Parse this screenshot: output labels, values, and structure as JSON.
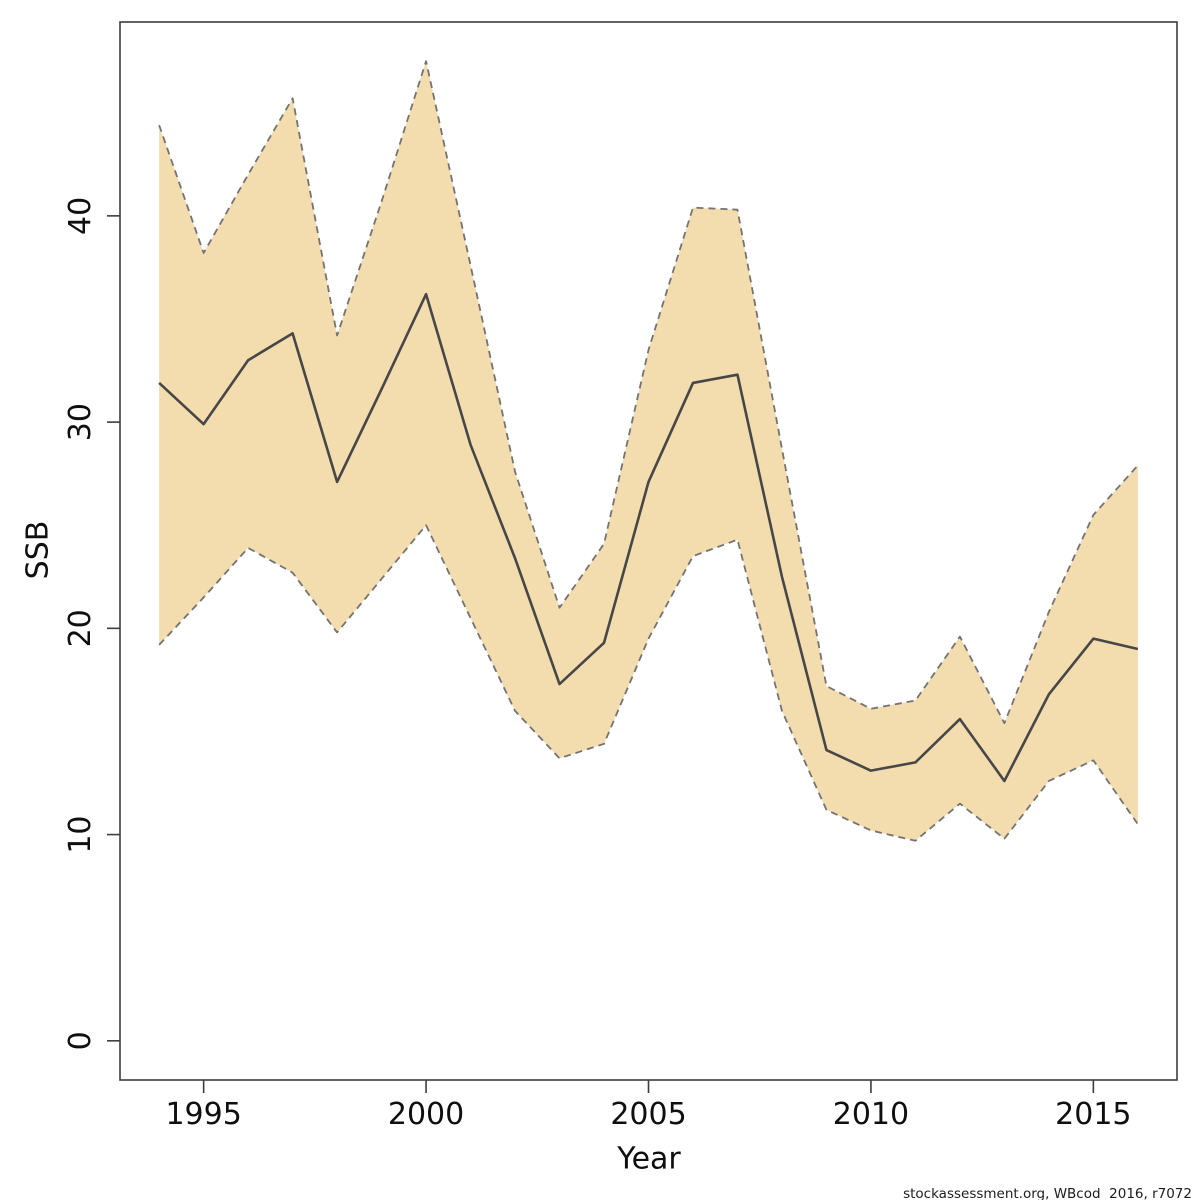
{
  "page": {
    "background": "#ffffff"
  },
  "chart_data": {
    "type": "line",
    "title": "",
    "xlabel": "Year",
    "ylabel": "SSB",
    "caption": "stockassessment.org, WBcod  2016, r7072",
    "x": [
      1994,
      1995,
      1996,
      1997,
      1998,
      1999,
      2000,
      2001,
      2002,
      2003,
      2004,
      2005,
      2006,
      2007,
      2008,
      2009,
      2010,
      2011,
      2012,
      2013,
      2014,
      2015,
      2016
    ],
    "series": [
      {
        "name": "median",
        "style": "solid",
        "color": "#474747",
        "values": [
          31.9,
          29.9,
          33.0,
          34.3,
          27.1,
          31.6,
          36.2,
          28.9,
          23.4,
          17.3,
          19.3,
          27.1,
          31.9,
          32.3,
          22.5,
          14.1,
          13.1,
          13.5,
          15.6,
          12.6,
          16.8,
          19.5,
          19.0
        ]
      },
      {
        "name": "ci-upper",
        "style": "dashed",
        "color": "#737373",
        "values": [
          44.4,
          38.2,
          42.0,
          45.7,
          34.2,
          40.7,
          47.5,
          37.6,
          27.6,
          21.0,
          24.1,
          33.5,
          40.4,
          40.3,
          28.7,
          17.2,
          16.1,
          16.5,
          19.6,
          15.4,
          20.8,
          25.5,
          27.9
        ]
      },
      {
        "name": "ci-lower",
        "style": "dashed",
        "color": "#737373",
        "values": [
          19.2,
          21.5,
          23.9,
          22.7,
          19.8,
          22.4,
          25.0,
          20.5,
          16.0,
          13.7,
          14.4,
          19.5,
          23.5,
          24.3,
          16.0,
          11.2,
          10.2,
          9.7,
          11.5,
          9.8,
          12.6,
          13.6,
          10.5
        ]
      }
    ],
    "band": {
      "fill": "#f3dcae",
      "between": [
        "ci-upper",
        "ci-lower"
      ]
    },
    "xticks": [
      1995,
      2000,
      2005,
      2010,
      2015
    ],
    "yticks": [
      0,
      10,
      20,
      30,
      40
    ],
    "xlim": [
      1993.12,
      2016.88
    ],
    "ylim": [
      -1.9,
      49.4
    ],
    "grid": false,
    "legend": "none",
    "axis_color": "#3d3d3d",
    "text_color": "#0f0f0f"
  }
}
